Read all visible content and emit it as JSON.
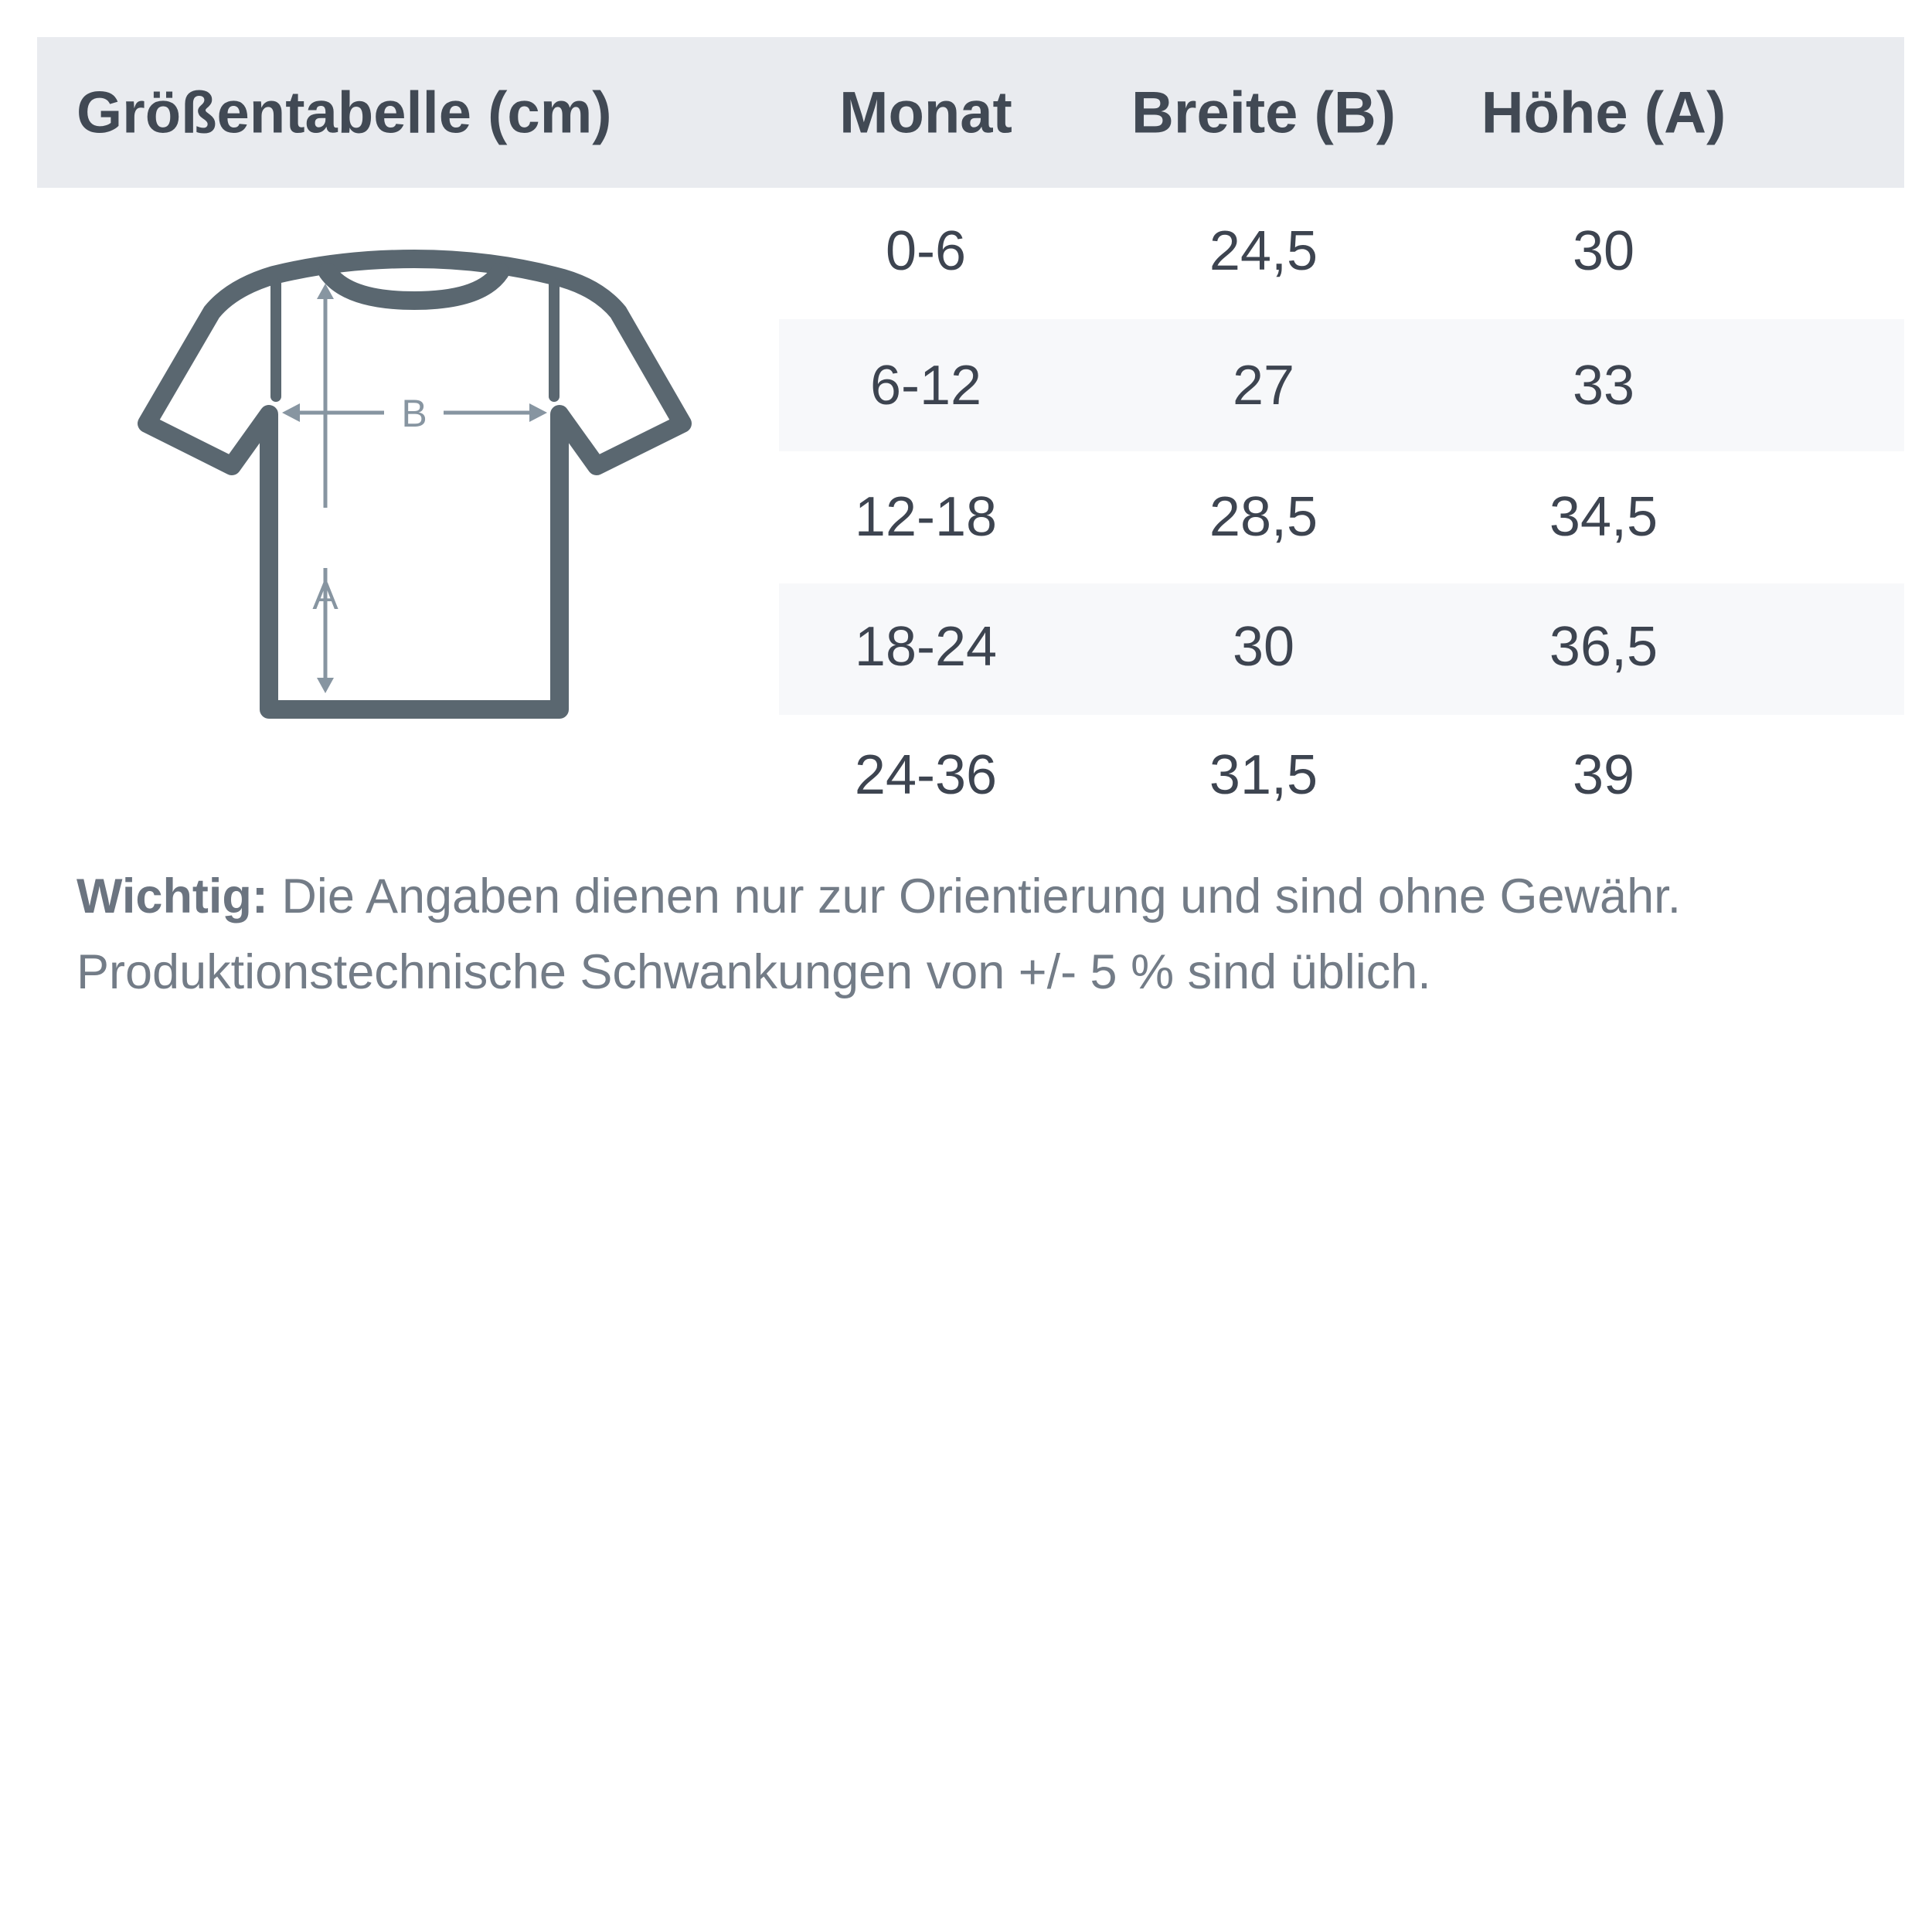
{
  "header": {
    "title": "Größentabelle (cm)",
    "columns": [
      "Monat",
      "Breite (B)",
      "Höhe (A)"
    ]
  },
  "rows": [
    [
      "0-6",
      "24,5",
      "30"
    ],
    [
      "6-12",
      "27",
      "33"
    ],
    [
      "12-18",
      "28,5",
      "34,5"
    ],
    [
      "18-24",
      "30",
      "36,5"
    ],
    [
      "24-36",
      "31,5",
      "39"
    ]
  ],
  "diagram": {
    "label_width": "B",
    "label_height": "A"
  },
  "note": {
    "bold": "Wichtig:",
    "line1": "Die Angaben dienen nur zur Orientierung und sind ohne Gewähr.",
    "line2": "Produktionstechnische Schwankungen von +/- 5 % sind üblich."
  },
  "colors": {
    "header_bg": "#e9ebef",
    "shirt": "#5a6770",
    "arrow": "#8795a1",
    "stripe": "#f7f8fa"
  }
}
